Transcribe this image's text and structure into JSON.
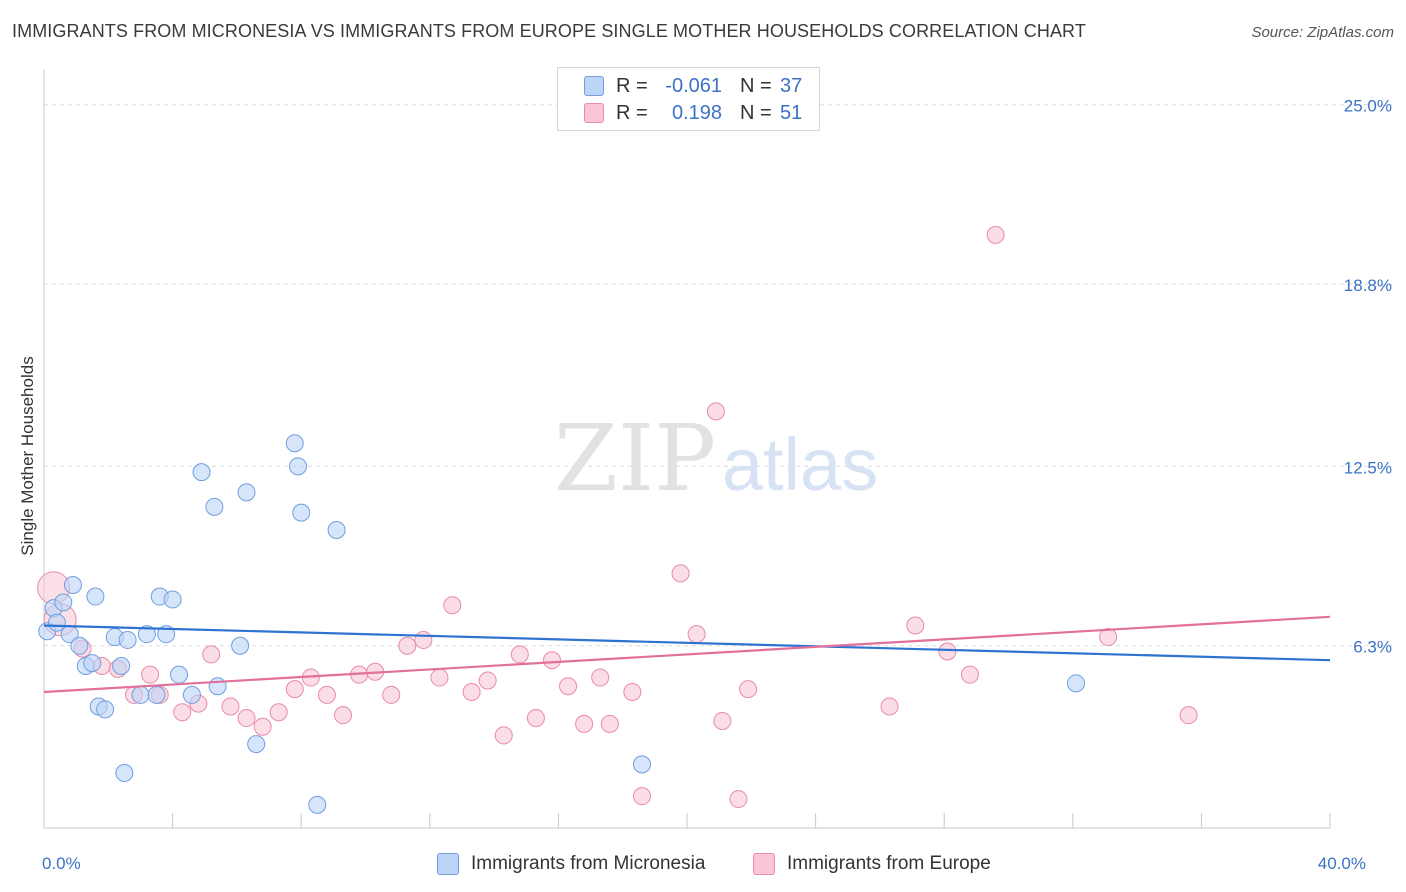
{
  "title": "IMMIGRANTS FROM MICRONESIA VS IMMIGRANTS FROM EUROPE SINGLE MOTHER HOUSEHOLDS CORRELATION CHART",
  "source": "Source: ZipAtlas.com",
  "watermark": {
    "zip": "ZIP",
    "atlas": "atlas"
  },
  "legend_top": {
    "rows": [
      {
        "r_label": "R =",
        "r_value": "-0.061",
        "n_label": "N =",
        "n_value": "37"
      },
      {
        "r_label": "R =",
        "r_value": "0.198",
        "n_label": "N =",
        "n_value": "51"
      }
    ]
  },
  "legend_bottom": {
    "micronesia": "Immigrants from Micronesia",
    "europe": "Immigrants from Europe"
  },
  "colors": {
    "micronesia_fill": "#bcd4f6",
    "micronesia_stroke": "#6f9fdf",
    "micronesia_line": "#2e72d2",
    "europe_fill": "#f8c6d6",
    "europe_stroke": "#e98aa9",
    "europe_line": "#e2709a",
    "tick_text": "#3b72c7",
    "grid": "#dcdcdc"
  },
  "chart_data": {
    "type": "scatter",
    "xlabel": "",
    "ylabel": "Single Mother Households",
    "xlim": [
      0,
      40
    ],
    "ylim": [
      0,
      26.2
    ],
    "x_tick_labels": [
      {
        "value": 0,
        "label": "0.0%"
      },
      {
        "value": 40,
        "label": "40.0%"
      }
    ],
    "y_ticks": [
      {
        "value": 6.3,
        "label": "6.3%"
      },
      {
        "value": 12.5,
        "label": "12.5%"
      },
      {
        "value": 18.8,
        "label": "18.8%"
      },
      {
        "value": 25.0,
        "label": "25.0%"
      }
    ],
    "grid": true,
    "legend_position": "top-center",
    "series": [
      {
        "name": "Immigrants from Micronesia",
        "r": -0.061,
        "n": 37,
        "trend": {
          "x": [
            0,
            40
          ],
          "y": [
            7.0,
            5.8
          ]
        },
        "points": [
          [
            0.1,
            6.8
          ],
          [
            0.3,
            7.6
          ],
          [
            0.4,
            7.1
          ],
          [
            0.6,
            7.8
          ],
          [
            0.8,
            6.7
          ],
          [
            0.9,
            8.4
          ],
          [
            1.1,
            6.3
          ],
          [
            1.3,
            5.6
          ],
          [
            1.5,
            5.7
          ],
          [
            1.6,
            8.0
          ],
          [
            1.7,
            4.2
          ],
          [
            1.9,
            4.1
          ],
          [
            2.2,
            6.6
          ],
          [
            2.4,
            5.6
          ],
          [
            2.5,
            1.9
          ],
          [
            2.6,
            6.5
          ],
          [
            3.0,
            4.6
          ],
          [
            3.2,
            6.7
          ],
          [
            3.5,
            4.6
          ],
          [
            3.6,
            8.0
          ],
          [
            3.8,
            6.7
          ],
          [
            4.0,
            7.9
          ],
          [
            4.2,
            5.3
          ],
          [
            4.6,
            4.6
          ],
          [
            4.9,
            12.3
          ],
          [
            5.3,
            11.1
          ],
          [
            5.4,
            4.9
          ],
          [
            6.1,
            6.3
          ],
          [
            6.3,
            11.6
          ],
          [
            6.6,
            2.9
          ],
          [
            7.8,
            13.3
          ],
          [
            7.9,
            12.5
          ],
          [
            8.0,
            10.9
          ],
          [
            8.5,
            0.8
          ],
          [
            9.1,
            10.3
          ],
          [
            18.6,
            2.2
          ],
          [
            32.1,
            5.0
          ]
        ]
      },
      {
        "name": "Immigrants from Europe",
        "r": 0.198,
        "n": 51,
        "trend": {
          "x": [
            0,
            40
          ],
          "y": [
            4.7,
            7.3
          ]
        },
        "points": [
          [
            0.3,
            8.3
          ],
          [
            0.5,
            7.2
          ],
          [
            1.2,
            6.2
          ],
          [
            1.8,
            5.6
          ],
          [
            2.3,
            5.5
          ],
          [
            2.8,
            4.6
          ],
          [
            3.3,
            5.3
          ],
          [
            3.6,
            4.6
          ],
          [
            4.3,
            4.0
          ],
          [
            4.8,
            4.3
          ],
          [
            5.2,
            6.0
          ],
          [
            5.8,
            4.2
          ],
          [
            6.3,
            3.8
          ],
          [
            6.8,
            3.5
          ],
          [
            7.3,
            4.0
          ],
          [
            7.8,
            4.8
          ],
          [
            8.3,
            5.2
          ],
          [
            8.8,
            4.6
          ],
          [
            9.3,
            3.9
          ],
          [
            9.8,
            5.3
          ],
          [
            10.3,
            5.4
          ],
          [
            10.8,
            4.6
          ],
          [
            11.3,
            6.3
          ],
          [
            11.8,
            6.5
          ],
          [
            12.3,
            5.2
          ],
          [
            12.7,
            7.7
          ],
          [
            13.3,
            4.7
          ],
          [
            13.8,
            5.1
          ],
          [
            14.3,
            3.2
          ],
          [
            14.8,
            6.0
          ],
          [
            15.3,
            3.8
          ],
          [
            15.8,
            5.8
          ],
          [
            16.3,
            4.9
          ],
          [
            16.8,
            3.6
          ],
          [
            17.3,
            5.2
          ],
          [
            17.6,
            3.6
          ],
          [
            18.3,
            4.7
          ],
          [
            18.6,
            1.1
          ],
          [
            19.8,
            8.8
          ],
          [
            20.3,
            6.7
          ],
          [
            20.9,
            14.4
          ],
          [
            21.1,
            3.7
          ],
          [
            21.6,
            1.0
          ],
          [
            21.9,
            4.8
          ],
          [
            26.3,
            4.2
          ],
          [
            27.1,
            7.0
          ],
          [
            28.1,
            6.1
          ],
          [
            28.8,
            5.3
          ],
          [
            29.6,
            20.5
          ],
          [
            33.1,
            6.6
          ],
          [
            35.6,
            3.9
          ]
        ]
      }
    ]
  }
}
